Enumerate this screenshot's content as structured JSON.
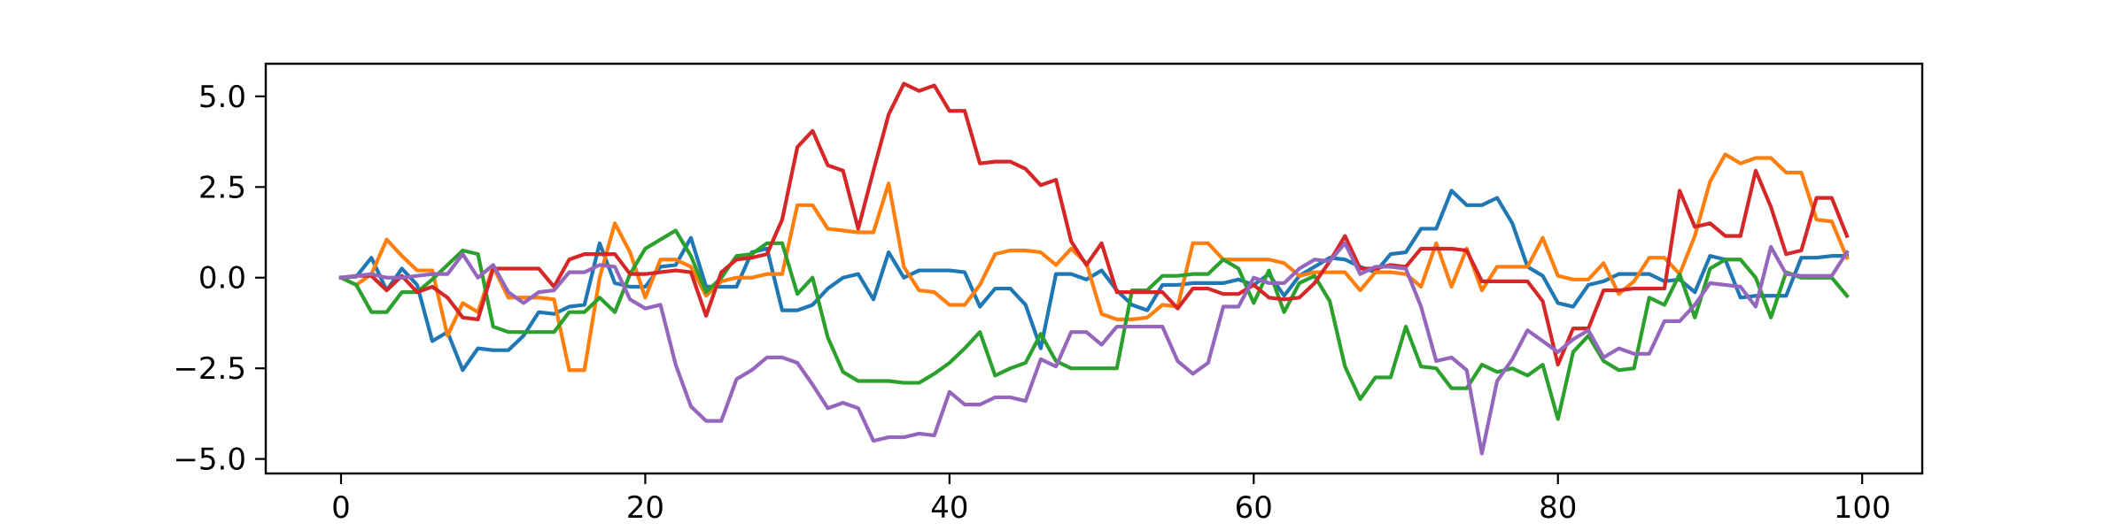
{
  "chart_data": {
    "type": "line",
    "title": "",
    "xlabel": "",
    "ylabel": "",
    "xlim": [
      -4.95,
      103.95
    ],
    "ylim": [
      -5.4,
      5.9
    ],
    "grid": false,
    "legend": "none",
    "x_ticks": [
      0,
      20,
      40,
      60,
      80,
      100
    ],
    "x_tick_labels": [
      "0",
      "20",
      "40",
      "60",
      "80",
      "100"
    ],
    "y_ticks": [
      5,
      2.5,
      0,
      -2.5,
      -5
    ],
    "y_tick_labels": [
      "5.0",
      "2.5",
      "0.0",
      "−2.5",
      "−5.0"
    ],
    "x": [
      0,
      1,
      2,
      3,
      4,
      5,
      6,
      7,
      8,
      9,
      10,
      11,
      12,
      13,
      14,
      15,
      16,
      17,
      18,
      19,
      20,
      21,
      22,
      23,
      24,
      25,
      26,
      27,
      28,
      29,
      30,
      31,
      32,
      33,
      34,
      35,
      36,
      37,
      38,
      39,
      40,
      41,
      42,
      43,
      44,
      45,
      46,
      47,
      48,
      49,
      50,
      51,
      52,
      53,
      54,
      55,
      56,
      57,
      58,
      59,
      60,
      61,
      62,
      63,
      64,
      65,
      66,
      67,
      68,
      69,
      70,
      71,
      72,
      73,
      74,
      75,
      76,
      77,
      78,
      79,
      80,
      81,
      82,
      83,
      84,
      85,
      86,
      87,
      88,
      89,
      90,
      91,
      92,
      93,
      94,
      95,
      96,
      97,
      98,
      99
    ],
    "series": [
      {
        "color": "#1f77b4",
        "values": [
          0,
          0.03,
          0.55,
          -0.35,
          0.25,
          -0.2,
          -1.75,
          -1.5,
          -2.55,
          -1.95,
          -2.0,
          -2.0,
          -1.6,
          -0.95,
          -1.0,
          -0.8,
          -0.75,
          0.95,
          -0.15,
          -0.25,
          -0.25,
          0.3,
          0.35,
          1.1,
          -0.25,
          -0.25,
          -0.25,
          0.7,
          0.8,
          -0.9,
          -0.9,
          -0.75,
          -0.3,
          0.0,
          0.1,
          -0.6,
          0.7,
          0.0,
          0.2,
          0.2,
          0.2,
          0.15,
          -0.8,
          -0.3,
          -0.3,
          -0.75,
          -1.95,
          0.1,
          0.1,
          -0.05,
          0.2,
          -0.35,
          -0.75,
          -0.9,
          -0.2,
          -0.2,
          -0.15,
          -0.15,
          -0.15,
          -0.05,
          -0.2,
          0.1,
          -0.5,
          0.05,
          0.3,
          0.55,
          0.5,
          0.3,
          0.15,
          0.65,
          0.7,
          1.35,
          1.35,
          2.4,
          2.0,
          2.0,
          2.2,
          1.5,
          0.3,
          0.05,
          -0.7,
          -0.8,
          -0.2,
          -0.1,
          0.1,
          0.1,
          0.1,
          -0.1,
          -0.05,
          -0.4,
          0.6,
          0.5,
          -0.55,
          -0.5,
          -0.5,
          -0.5,
          0.55,
          0.55,
          0.6,
          0.6
        ]
      },
      {
        "color": "#ff7f0e",
        "values": [
          0,
          -0.2,
          0.1,
          1.05,
          0.6,
          0.2,
          0.2,
          -1.6,
          -0.7,
          -0.95,
          0.3,
          -0.55,
          -0.55,
          -0.55,
          -0.6,
          -2.55,
          -2.55,
          0.0,
          1.5,
          0.7,
          -0.55,
          0.5,
          0.5,
          0.3,
          -0.5,
          -0.1,
          0.0,
          0.0,
          0.1,
          0.1,
          2.0,
          2.0,
          1.35,
          1.3,
          1.25,
          1.25,
          2.6,
          0.3,
          -0.35,
          -0.4,
          -0.75,
          -0.75,
          -0.2,
          0.65,
          0.75,
          0.75,
          0.7,
          0.35,
          0.8,
          0.4,
          -1.0,
          -1.15,
          -1.15,
          -1.1,
          -0.75,
          -0.8,
          0.95,
          0.95,
          0.5,
          0.5,
          0.5,
          0.5,
          0.4,
          0.05,
          0.15,
          0.15,
          0.15,
          -0.35,
          0.15,
          0.15,
          0.1,
          -0.25,
          0.95,
          -0.25,
          0.8,
          -0.35,
          0.3,
          0.3,
          0.3,
          1.1,
          0.05,
          -0.05,
          -0.05,
          0.4,
          -0.45,
          -0.1,
          0.55,
          0.55,
          0.1,
          1.15,
          2.65,
          3.4,
          3.15,
          3.3,
          3.3,
          2.9,
          2.9,
          1.6,
          1.55,
          0.55
        ]
      },
      {
        "color": "#2ca02c",
        "values": [
          0,
          -0.2,
          -0.95,
          -0.95,
          -0.4,
          -0.4,
          -0.05,
          0.35,
          0.75,
          0.65,
          -1.35,
          -1.5,
          -1.5,
          -1.5,
          -1.5,
          -0.95,
          -0.95,
          -0.55,
          -0.95,
          0.1,
          0.8,
          1.05,
          1.3,
          0.6,
          -0.4,
          0.0,
          0.6,
          0.65,
          0.95,
          0.95,
          -0.45,
          0.0,
          -1.65,
          -2.6,
          -2.85,
          -2.85,
          -2.85,
          -2.9,
          -2.9,
          -2.65,
          -2.35,
          -1.95,
          -1.5,
          -2.7,
          -2.5,
          -2.35,
          -1.55,
          -2.3,
          -2.5,
          -2.5,
          -2.5,
          -2.5,
          -0.35,
          -0.35,
          0.05,
          0.05,
          0.1,
          0.1,
          0.5,
          0.25,
          -0.7,
          0.2,
          -0.95,
          -0.15,
          0.05,
          -0.65,
          -2.45,
          -3.35,
          -2.75,
          -2.75,
          -1.35,
          -2.45,
          -2.5,
          -3.05,
          -3.05,
          -2.4,
          -2.6,
          -2.5,
          -2.7,
          -2.4,
          -3.9,
          -2.05,
          -1.6,
          -2.3,
          -2.55,
          -2.5,
          -0.55,
          -0.75,
          0.1,
          -1.1,
          0.25,
          0.5,
          0.5,
          0.0,
          -1.1,
          0.15,
          0.0,
          0.0,
          0.0,
          -0.5
        ]
      },
      {
        "color": "#d62728",
        "values": [
          0,
          0.05,
          0.05,
          -0.35,
          0.05,
          -0.4,
          -0.25,
          -0.55,
          -1.1,
          -1.15,
          0.25,
          0.25,
          0.25,
          0.25,
          -0.25,
          0.5,
          0.65,
          0.65,
          0.65,
          0.1,
          0.1,
          0.15,
          0.2,
          0.15,
          -1.05,
          0.15,
          0.5,
          0.55,
          0.65,
          1.6,
          3.6,
          4.05,
          3.1,
          2.95,
          1.35,
          2.95,
          4.5,
          5.35,
          5.15,
          5.3,
          4.6,
          4.6,
          3.15,
          3.2,
          3.2,
          3.0,
          2.55,
          2.7,
          1.0,
          0.35,
          0.95,
          -0.4,
          -0.4,
          -0.4,
          -0.4,
          -0.85,
          -0.3,
          -0.3,
          -0.45,
          -0.45,
          -0.2,
          -0.55,
          -0.6,
          -0.55,
          -0.15,
          0.45,
          1.15,
          0.25,
          0.25,
          0.35,
          0.3,
          0.8,
          0.8,
          0.8,
          0.75,
          -0.1,
          -0.1,
          -0.1,
          -0.1,
          -0.65,
          -2.4,
          -1.4,
          -1.4,
          -0.35,
          -0.35,
          -0.3,
          -0.3,
          -0.3,
          2.4,
          1.4,
          1.5,
          1.15,
          1.15,
          2.95,
          1.95,
          0.65,
          0.75,
          2.2,
          2.2,
          1.15
        ]
      },
      {
        "color": "#9467bd",
        "values": [
          0,
          0.05,
          0.1,
          0.0,
          0.0,
          0.05,
          0.1,
          0.1,
          0.65,
          0.0,
          0.35,
          -0.4,
          -0.7,
          -0.4,
          -0.35,
          0.15,
          0.15,
          0.35,
          0.3,
          -0.6,
          -0.85,
          -0.75,
          -2.4,
          -3.55,
          -3.95,
          -3.95,
          -2.8,
          -2.55,
          -2.2,
          -2.2,
          -2.35,
          -2.95,
          -3.6,
          -3.45,
          -3.6,
          -4.5,
          -4.4,
          -4.4,
          -4.3,
          -4.35,
          -3.15,
          -3.5,
          -3.5,
          -3.3,
          -3.3,
          -3.4,
          -2.25,
          -2.45,
          -1.5,
          -1.5,
          -1.85,
          -1.35,
          -1.35,
          -1.35,
          -1.35,
          -2.3,
          -2.65,
          -2.35,
          -0.8,
          -0.8,
          0.0,
          -0.15,
          -0.15,
          0.25,
          0.5,
          0.45,
          0.95,
          0.1,
          0.3,
          0.3,
          0.25,
          -0.8,
          -2.3,
          -2.2,
          -2.55,
          -4.85,
          -2.85,
          -2.25,
          -1.45,
          -1.75,
          -2.05,
          -1.7,
          -1.45,
          -2.2,
          -1.95,
          -2.1,
          -2.1,
          -1.2,
          -1.2,
          -0.75,
          -0.15,
          -0.2,
          -0.25,
          -0.8,
          0.85,
          0.1,
          0.05,
          0.05,
          0.05,
          0.7
        ]
      }
    ]
  }
}
